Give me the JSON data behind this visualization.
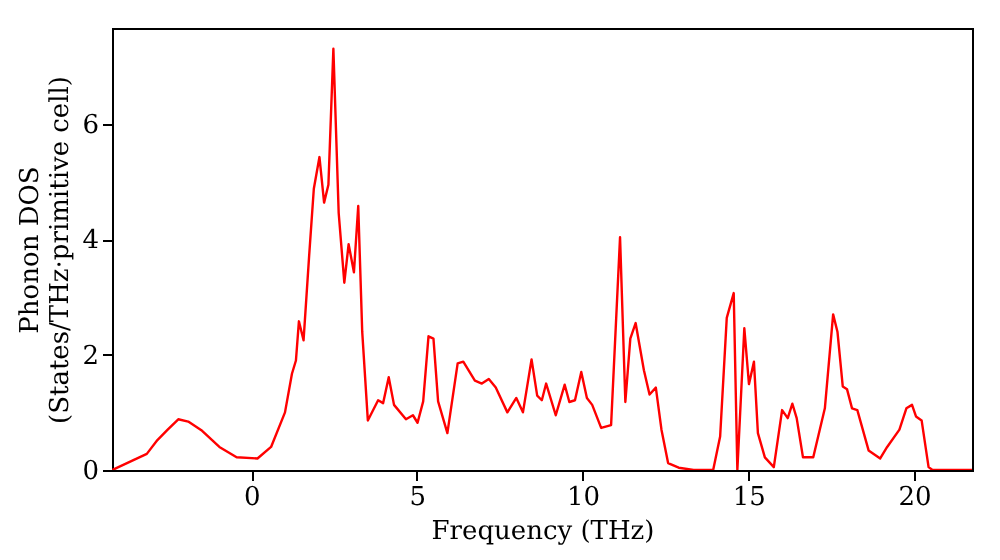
{
  "chart_data": {
    "type": "line",
    "xlabel": "Frequency (THz)",
    "ylabel": "Phonon DOS\n(States/THz·primitive cell)",
    "xlim": [
      -4.2,
      21.75
    ],
    "ylim": [
      0,
      7.67
    ],
    "xticks": [
      0,
      5,
      10,
      15,
      20
    ],
    "yticks": [
      0,
      2,
      4,
      6
    ],
    "grid": false,
    "line_style": "solid",
    "marker": "none",
    "series": [
      {
        "color": "#ff0000",
        "x": [
          -4.19,
          -3.15,
          -2.83,
          -2.52,
          -2.2,
          -1.9,
          -1.48,
          -0.96,
          -0.44,
          0.19,
          0.6,
          1.02,
          1.23,
          1.35,
          1.44,
          1.58,
          1.75,
          1.89,
          2.06,
          2.2,
          2.33,
          2.48,
          2.64,
          2.81,
          2.94,
          3.1,
          3.23,
          3.35,
          3.52,
          3.83,
          3.98,
          4.15,
          4.31,
          4.67,
          4.88,
          5.02,
          5.19,
          5.35,
          5.5,
          5.64,
          5.92,
          6.23,
          6.4,
          6.75,
          6.96,
          7.17,
          7.38,
          7.73,
          8.0,
          8.2,
          8.46,
          8.63,
          8.77,
          8.9,
          9.19,
          9.46,
          9.6,
          9.77,
          9.96,
          10.13,
          10.29,
          10.56,
          10.86,
          11.13,
          11.29,
          11.44,
          11.6,
          11.85,
          12.02,
          12.21,
          12.38,
          12.58,
          12.9,
          13.35,
          13.94,
          14.15,
          14.35,
          14.56,
          14.67,
          14.88,
          15.02,
          15.17,
          15.29,
          15.5,
          15.77,
          16.02,
          16.19,
          16.33,
          16.46,
          16.65,
          16.96,
          17.31,
          17.56,
          17.69,
          17.85,
          17.98,
          18.13,
          18.29,
          18.63,
          18.98,
          19.19,
          19.56,
          19.77,
          19.94,
          20.06,
          20.23,
          20.44,
          20.56,
          21.75
        ],
        "values": [
          0,
          0.28,
          0.52,
          0.7,
          0.88,
          0.84,
          0.68,
          0.4,
          0.22,
          0.2,
          0.4,
          1.0,
          1.67,
          1.9,
          2.58,
          2.25,
          3.73,
          4.88,
          5.43,
          4.64,
          4.95,
          7.31,
          4.46,
          3.25,
          3.92,
          3.43,
          4.58,
          2.4,
          0.86,
          1.21,
          1.16,
          1.61,
          1.13,
          0.88,
          0.95,
          0.82,
          1.19,
          2.32,
          2.28,
          1.19,
          0.64,
          1.85,
          1.88,
          1.55,
          1.5,
          1.58,
          1.43,
          1.0,
          1.25,
          1.0,
          1.92,
          1.29,
          1.21,
          1.5,
          0.95,
          1.48,
          1.18,
          1.21,
          1.7,
          1.25,
          1.13,
          0.73,
          0.78,
          4.04,
          1.18,
          2.28,
          2.55,
          1.73,
          1.31,
          1.43,
          0.7,
          0.12,
          0.04,
          0,
          0,
          0.58,
          2.64,
          3.07,
          0,
          2.46,
          1.49,
          1.88,
          0.64,
          0.22,
          0.05,
          1.04,
          0.9,
          1.15,
          0.9,
          0.22,
          0.22,
          1.07,
          2.7,
          2.4,
          1.45,
          1.4,
          1.07,
          1.04,
          0.34,
          0.2,
          0.4,
          0.7,
          1.07,
          1.13,
          0.93,
          0.86,
          0.05,
          0,
          0
        ]
      }
    ]
  }
}
